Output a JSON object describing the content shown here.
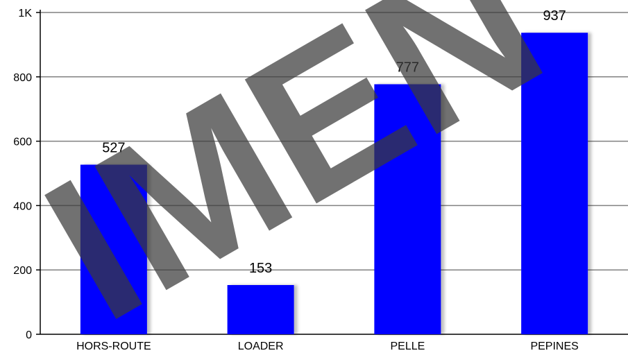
{
  "chart_data": {
    "type": "bar",
    "categories": [
      "HORS-ROUTE",
      "LOADER",
      "PELLE",
      "PEPINES"
    ],
    "values": [
      527,
      153,
      777,
      937
    ],
    "value_labels": [
      "527",
      "153",
      "777",
      "937"
    ],
    "y_ticks": [
      0,
      200,
      400,
      600,
      800,
      1000
    ],
    "y_tick_labels": [
      "0",
      "200",
      "400",
      "600",
      "800",
      "1K"
    ],
    "ylim": [
      0,
      1000
    ],
    "grid": true,
    "bar_color": "#0000ff",
    "title": "",
    "xlabel": "",
    "ylabel": ""
  },
  "watermark": {
    "text": "IMEN",
    "color": "#3a3a3a"
  }
}
